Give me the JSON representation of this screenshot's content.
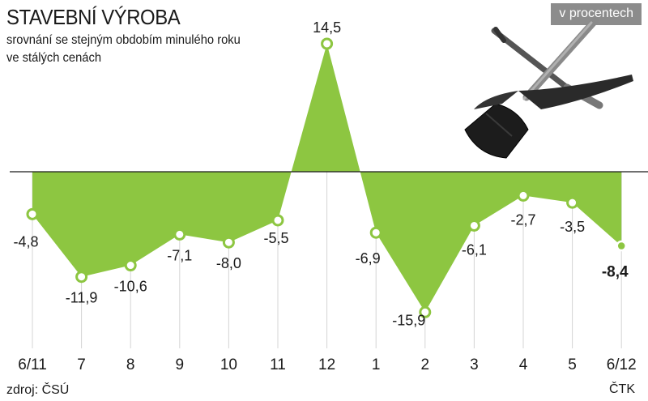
{
  "header": {
    "title": "STAVEBNÍ VÝROBA",
    "subtitle_line1": "srovnání se stejným obdobím minulého roku",
    "subtitle_line2": "ve stálých cenách",
    "unit": "v procentech"
  },
  "footer": {
    "source": "zdroj: ČSÚ",
    "agency": "ČTK"
  },
  "illustration": {
    "icon": "shovel-and-pickaxe-icon"
  },
  "colors": {
    "area_fill": "#8dc641",
    "marker_stroke": "#8dc641",
    "zero_line": "#1a1a1a",
    "grid": "#d4d4d4",
    "badge": "#8c8c8c"
  },
  "chart_data": {
    "type": "area",
    "categories": [
      "6/11",
      "7",
      "8",
      "9",
      "10",
      "11",
      "12",
      "1",
      "2",
      "3",
      "4",
      "5",
      "6/12"
    ],
    "values": [
      -4.8,
      -11.9,
      -10.6,
      -7.1,
      -8.0,
      -5.5,
      14.5,
      -6.9,
      -15.9,
      -6.1,
      -2.7,
      -3.5,
      -8.4
    ],
    "value_labels": [
      "-4,8",
      "-11,9",
      "-10,6",
      "-7,1",
      "-8,0",
      "-5,5",
      "14,5",
      "-6,9",
      "-15,9",
      "-6,1",
      "-2,7",
      "-3,5",
      "-8,4"
    ],
    "highlight_last": true,
    "title": "STAVEBNÍ VÝROBA",
    "xlabel": "",
    "ylabel": "",
    "ylim": [
      -15.9,
      14.5
    ],
    "grid": true
  }
}
